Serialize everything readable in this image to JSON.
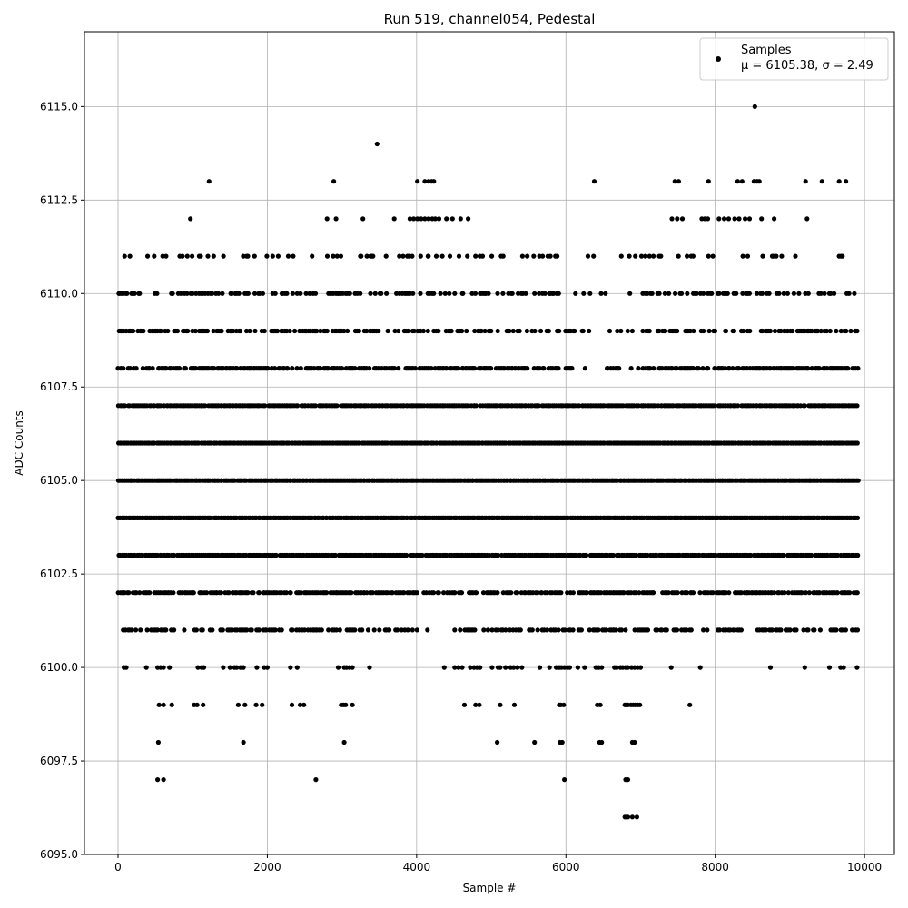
{
  "chart_data": {
    "type": "scatter",
    "title": "Run 519, channel054, Pedestal",
    "xlabel": "Sample #",
    "ylabel": "ADC Counts",
    "xlim": [
      -450,
      10400
    ],
    "ylim": [
      6095.0,
      6117.0
    ],
    "x_ticks": [
      0,
      2000,
      4000,
      6000,
      8000,
      10000
    ],
    "x_tick_labels": [
      "0",
      "2000",
      "4000",
      "6000",
      "8000",
      "10000"
    ],
    "y_ticks": [
      6095.0,
      6097.5,
      6100.0,
      6102.5,
      6105.0,
      6107.5,
      6110.0,
      6112.5,
      6115.0
    ],
    "y_tick_labels": [
      "6095.0",
      "6097.5",
      "6100.0",
      "6102.5",
      "6105.0",
      "6107.5",
      "6110.0",
      "6112.5",
      "6115.0"
    ],
    "grid": true,
    "legend_position": "top-right",
    "marker_color": "#000000",
    "series": [
      {
        "name": "Samples",
        "stats_label": "μ = 6105.38, σ = 2.49",
        "sample_count": 10000,
        "levels": [
          {
            "y": 6096,
            "x": [
              6790,
              6810,
              6830,
              6890,
              6950
            ]
          },
          {
            "y": 6097,
            "x": [
              530,
              610,
              2650,
              5980,
              6800,
              6830
            ]
          },
          {
            "y": 6098,
            "x": [
              540,
              1680,
              3030,
              5080,
              5580,
              5920,
              5950,
              6450,
              6480,
              6890,
              6920
            ]
          },
          {
            "y": 6099,
            "x": [
              550,
              610,
              720,
              1020,
              1060,
              1140,
              1610,
              1700,
              1850,
              1930,
              2330,
              2440,
              2490,
              2990,
              3020,
              3050,
              3140,
              4640,
              4790,
              4840,
              5120,
              5310,
              5910,
              5930,
              5970,
              6420,
              6460,
              6790,
              6810,
              6830,
              6870,
              6900,
              6930,
              6960,
              6990,
              7660
            ]
          },
          {
            "y": 6100,
            "x": [
              80,
              110,
              380,
              530,
              570,
              610,
              690,
              1070,
              1120,
              1150,
              1410,
              1500,
              1560,
              1590,
              1640,
              1680,
              1860,
              1960,
              2000,
              2310,
              2400,
              2950,
              3030,
              3060,
              3100,
              3140,
              3370,
              4370,
              4510,
              4560,
              4610,
              4720,
              4770,
              4810,
              4850,
              5010,
              5090,
              5120,
              5190,
              5260,
              5300,
              5350,
              5410,
              5650,
              5780,
              5870,
              5910,
              5940,
              5980,
              6020,
              6050,
              6160,
              6250,
              6400,
              6440,
              6480,
              6650,
              6680,
              6730,
              6760,
              6800,
              6830,
              6880,
              6920,
              6960,
              7000,
              7410,
              7800,
              8740,
              9200,
              9530,
              9680,
              9720,
              9900
            ]
          }
        ],
        "dense_levels": [
          6101,
          6102,
          6103,
          6104,
          6105,
          6106,
          6107,
          6108,
          6109,
          6110,
          6111
        ],
        "sparse_levels": [
          {
            "y": 6112,
            "x": [
              970,
              2800,
              2920,
              3280,
              3700,
              3910,
              3960,
              4010,
              4060,
              4110,
              4160,
              4210,
              4250,
              4300,
              4400,
              4480,
              4590,
              4690,
              7420,
              7490,
              7560,
              7820,
              7860,
              7900,
              8050,
              8120,
              8180,
              8260,
              8320,
              8400,
              8460,
              8620,
              8790,
              9230
            ]
          },
          {
            "y": 6113,
            "x": [
              1220,
              2890,
              4010,
              4110,
              4160,
              4200,
              4230,
              6380,
              7460,
              7510,
              7910,
              8300,
              8360,
              8520,
              8560,
              8590,
              9210,
              9430,
              9660,
              9750
            ]
          },
          {
            "y": 6114,
            "x": [
              3470
            ]
          },
          {
            "y": 6115,
            "x": [
              8530
            ]
          }
        ]
      }
    ]
  }
}
